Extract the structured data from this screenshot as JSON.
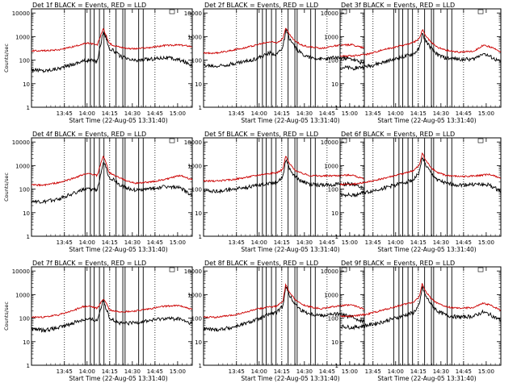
{
  "chart_data": [
    {
      "type": "line",
      "title": "Det 1f BLACK = Events, RED = LLD",
      "xlabel": "Start Time (22-Aug-05 13:31:40)",
      "ylabel": "Counts/sec",
      "xticks": [
        "13:45",
        "14:00",
        "14:15",
        "14:30",
        "14:45",
        "15:00"
      ],
      "yticks": [
        "1",
        "10",
        "100",
        "1000",
        "10000"
      ],
      "xlim_minutes": [
        -8.5,
        98
      ],
      "ylim": [
        1,
        15000
      ],
      "yscale": "log",
      "dotted_lines_minutes": [
        13.3,
        43.3,
        73.3
      ],
      "solid_lines_minutes": [
        27,
        30.5,
        33,
        36.5,
        39.5,
        47.5,
        52,
        53.5,
        62.5,
        65.5
      ],
      "series": [
        {
          "color": "#000000",
          "x": [
            -8.5,
            0,
            10,
            20,
            25,
            30,
            35,
            39,
            41,
            43,
            46,
            50,
            55,
            60,
            70,
            80,
            90,
            98
          ],
          "values": [
            40,
            35,
            45,
            70,
            90,
            100,
            90,
            1600,
            900,
            300,
            250,
            150,
            110,
            95,
            110,
            130,
            100,
            60
          ]
        },
        {
          "color": "#cc0000",
          "x": [
            -8.5,
            0,
            10,
            20,
            25,
            30,
            35,
            39,
            41,
            43,
            46,
            50,
            55,
            60,
            70,
            80,
            90,
            98
          ],
          "values": [
            250,
            250,
            280,
            380,
            480,
            520,
            430,
            2200,
            1100,
            500,
            430,
            360,
            320,
            300,
            340,
            420,
            440,
            380
          ]
        }
      ]
    },
    {
      "type": "line",
      "title": "Det 2f BLACK = Events, RED = LLD",
      "xlabel": "Start Time (22-Aug-05 13:31:40)",
      "ylabel": "",
      "xticks": [
        "13:45",
        "14:00",
        "14:15",
        "14:30",
        "14:45",
        "15:00"
      ],
      "yticks": [
        "1",
        "10",
        "100",
        "1000",
        "10000"
      ],
      "xlim_minutes": [
        -8.5,
        98
      ],
      "ylim": [
        1,
        15000
      ],
      "yscale": "log",
      "dotted_lines_minutes": [
        13.3,
        43.3,
        73.3
      ],
      "solid_lines_minutes": [
        27,
        30.5,
        33,
        36.5,
        39.5,
        47.5,
        52,
        53.5,
        62.5,
        65.5
      ],
      "series": [
        {
          "color": "#000000",
          "x": [
            -8.5,
            0,
            10,
            20,
            25,
            30,
            35,
            40,
            44,
            46,
            48,
            52,
            56,
            62,
            70,
            80,
            90,
            98
          ],
          "values": [
            60,
            55,
            70,
            90,
            110,
            140,
            200,
            180,
            350,
            1900,
            900,
            350,
            200,
            130,
            110,
            130,
            110,
            70
          ]
        },
        {
          "color": "#cc0000",
          "x": [
            -8.5,
            0,
            10,
            20,
            25,
            30,
            35,
            40,
            44,
            46,
            48,
            52,
            56,
            62,
            70,
            80,
            90,
            98
          ],
          "values": [
            200,
            200,
            260,
            350,
            420,
            500,
            600,
            560,
            800,
            2500,
            1300,
            650,
            450,
            360,
            320,
            420,
            450,
            330
          ]
        }
      ]
    },
    {
      "type": "line",
      "title": "Det 3f BLACK = Events, RED = LLD",
      "xlabel": "Start Time (22-Aug-05 13:31:40)",
      "ylabel": "",
      "xticks": [
        "13:45",
        "14:00",
        "14:15",
        "14:30",
        "14:45",
        "15:00"
      ],
      "yticks": [
        "1",
        "10",
        "100",
        "1000",
        "10000"
      ],
      "xlim_minutes": [
        -8.5,
        98
      ],
      "ylim": [
        1,
        15000
      ],
      "yscale": "log",
      "dotted_lines_minutes": [
        13.3,
        43.3,
        73.3
      ],
      "solid_lines_minutes": [
        27,
        30.5,
        33,
        36.5,
        39.5,
        47.5,
        52,
        53.5,
        62.5,
        65.5
      ],
      "series": [
        {
          "color": "#000000",
          "x": [
            -8.5,
            0,
            10,
            20,
            30,
            40,
            44,
            46,
            48,
            52,
            56,
            62,
            70,
            80,
            86,
            90,
            98
          ],
          "values": [
            50,
            45,
            55,
            80,
            120,
            180,
            300,
            1300,
            700,
            300,
            170,
            120,
            110,
            110,
            200,
            150,
            80
          ]
        },
        {
          "color": "#cc0000",
          "x": [
            -8.5,
            0,
            10,
            20,
            30,
            40,
            44,
            46,
            48,
            52,
            56,
            62,
            70,
            80,
            86,
            90,
            98
          ],
          "values": [
            150,
            150,
            180,
            280,
            380,
            550,
            800,
            2000,
            1100,
            550,
            350,
            260,
            220,
            240,
            420,
            380,
            230
          ]
        }
      ]
    },
    {
      "type": "line",
      "title": "Det 4f BLACK = Events, RED = LLD",
      "xlabel": "Start Time (22-Aug-05 13:31:40)",
      "ylabel": "Counts/sec",
      "xticks": [
        "13:45",
        "14:00",
        "14:15",
        "14:30",
        "14:45",
        "15:00"
      ],
      "yticks": [
        "1",
        "10",
        "100",
        "1000",
        "10000"
      ],
      "xlim_minutes": [
        -8.5,
        98
      ],
      "ylim": [
        1,
        15000
      ],
      "yscale": "log",
      "dotted_lines_minutes": [
        13.3,
        43.3,
        73.3
      ],
      "solid_lines_minutes": [
        27,
        30.5,
        33,
        36.5,
        39.5,
        47.5,
        52,
        53.5,
        62.5,
        65.5
      ],
      "series": [
        {
          "color": "#000000",
          "x": [
            -8.5,
            0,
            10,
            20,
            25,
            30,
            35,
            39,
            41,
            43,
            46,
            50,
            55,
            60,
            70,
            80,
            90,
            98
          ],
          "values": [
            30,
            28,
            40,
            70,
            90,
            100,
            90,
            1500,
            800,
            300,
            250,
            150,
            110,
            90,
            100,
            130,
            110,
            55
          ]
        },
        {
          "color": "#cc0000",
          "x": [
            -8.5,
            0,
            10,
            20,
            25,
            30,
            35,
            39,
            41,
            43,
            46,
            50,
            55,
            60,
            70,
            80,
            90,
            98
          ],
          "values": [
            150,
            150,
            190,
            300,
            400,
            450,
            380,
            2600,
            1200,
            500,
            400,
            300,
            220,
            180,
            200,
            260,
            380,
            250
          ]
        }
      ]
    },
    {
      "type": "line",
      "title": "Det 5f BLACK = Events, RED = LLD",
      "xlabel": "Start Time (22-Aug-05 13:31:40)",
      "ylabel": "",
      "xticks": [
        "13:45",
        "14:00",
        "14:15",
        "14:30",
        "14:45",
        "15:00"
      ],
      "yticks": [
        "1",
        "10",
        "100",
        "1000",
        "10000"
      ],
      "xlim_minutes": [
        -8.5,
        98
      ],
      "ylim": [
        1,
        15000
      ],
      "yscale": "log",
      "dotted_lines_minutes": [
        13.3,
        43.3,
        73.3
      ],
      "solid_lines_minutes": [
        27,
        30.5,
        33,
        36.5,
        39.5,
        47.5,
        52,
        53.5,
        62.5,
        65.5
      ],
      "series": [
        {
          "color": "#000000",
          "x": [
            -8.5,
            0,
            10,
            20,
            30,
            40,
            44,
            46,
            48,
            52,
            56,
            62,
            70,
            80,
            90,
            98
          ],
          "values": [
            90,
            80,
            95,
            120,
            160,
            200,
            350,
            1900,
            800,
            350,
            220,
            160,
            150,
            160,
            170,
            100
          ]
        },
        {
          "color": "#cc0000",
          "x": [
            -8.5,
            0,
            10,
            20,
            30,
            40,
            44,
            46,
            48,
            52,
            56,
            62,
            70,
            80,
            90,
            98
          ],
          "values": [
            220,
            220,
            250,
            320,
            420,
            500,
            700,
            2600,
            1300,
            650,
            480,
            380,
            360,
            380,
            400,
            260
          ]
        }
      ]
    },
    {
      "type": "line",
      "title": "Det 6f BLACK = Events, RED = LLD",
      "xlabel": "Start Time (22-Aug-05 13:31:40)",
      "ylabel": "",
      "xticks": [
        "13:45",
        "14:00",
        "14:15",
        "14:30",
        "14:45",
        "15:00"
      ],
      "yticks": [
        "1",
        "10",
        "100",
        "1000",
        "10000"
      ],
      "xlim_minutes": [
        -8.5,
        98
      ],
      "ylim": [
        1,
        15000
      ],
      "yscale": "log",
      "dotted_lines_minutes": [
        13.3,
        43.3,
        73.3
      ],
      "solid_lines_minutes": [
        27,
        30.5,
        33,
        36.5,
        39.5,
        47.5,
        52,
        53.5,
        62.5,
        65.5
      ],
      "series": [
        {
          "color": "#000000",
          "x": [
            -8.5,
            0,
            10,
            20,
            30,
            40,
            44,
            46,
            48,
            52,
            56,
            62,
            70,
            80,
            90,
            98
          ],
          "values": [
            60,
            55,
            75,
            110,
            160,
            250,
            500,
            2500,
            1100,
            450,
            250,
            170,
            150,
            160,
            150,
            80
          ]
        },
        {
          "color": "#cc0000",
          "x": [
            -8.5,
            0,
            10,
            20,
            30,
            40,
            44,
            46,
            48,
            52,
            56,
            62,
            70,
            80,
            90,
            98
          ],
          "values": [
            160,
            160,
            200,
            280,
            400,
            600,
            1000,
            3500,
            1700,
            800,
            500,
            380,
            340,
            360,
            420,
            300
          ]
        }
      ]
    },
    {
      "type": "line",
      "title": "Det 7f BLACK = Events, RED = LLD",
      "xlabel": "Start Time (22-Aug-05 13:31:40)",
      "ylabel": "Counts/sec",
      "xticks": [
        "13:45",
        "14:00",
        "14:15",
        "14:30",
        "14:45",
        "15:00"
      ],
      "yticks": [
        "1",
        "10",
        "100",
        "1000",
        "10000"
      ],
      "xlim_minutes": [
        -8.5,
        98
      ],
      "ylim": [
        1,
        15000
      ],
      "yscale": "log",
      "dotted_lines_minutes": [
        13.3,
        43.3,
        73.3
      ],
      "solid_lines_minutes": [
        27,
        30.5,
        33,
        36.5,
        39.5,
        47.5,
        52,
        53.5,
        62.5,
        65.5
      ],
      "series": [
        {
          "color": "#000000",
          "x": [
            -8.5,
            0,
            10,
            20,
            25,
            30,
            35,
            39,
            41,
            43,
            46,
            50,
            55,
            60,
            70,
            80,
            90,
            98
          ],
          "values": [
            35,
            30,
            40,
            65,
            85,
            90,
            80,
            600,
            250,
            110,
            80,
            60,
            60,
            65,
            80,
            100,
            90,
            55
          ]
        },
        {
          "color": "#cc0000",
          "x": [
            -8.5,
            0,
            10,
            20,
            25,
            30,
            35,
            39,
            41,
            43,
            46,
            50,
            55,
            60,
            70,
            80,
            90,
            98
          ],
          "values": [
            110,
            110,
            140,
            220,
            300,
            320,
            260,
            650,
            450,
            230,
            200,
            190,
            190,
            200,
            250,
            320,
            340,
            230
          ]
        }
      ]
    },
    {
      "type": "line",
      "title": "Det 8f BLACK = Events, RED = LLD",
      "xlabel": "Start Time (22-Aug-05 13:31:40)",
      "ylabel": "",
      "xticks": [
        "13:45",
        "14:00",
        "14:15",
        "14:30",
        "14:45",
        "15:00"
      ],
      "yticks": [
        "1",
        "10",
        "100",
        "1000",
        "10000"
      ],
      "xlim_minutes": [
        -8.5,
        98
      ],
      "ylim": [
        1,
        15000
      ],
      "yscale": "log",
      "dotted_lines_minutes": [
        13.3,
        43.3,
        73.3
      ],
      "solid_lines_minutes": [
        27,
        30.5,
        33,
        36.5,
        39.5,
        47.5,
        52,
        53.5,
        62.5,
        65.5
      ],
      "series": [
        {
          "color": "#000000",
          "x": [
            -8.5,
            0,
            10,
            20,
            25,
            30,
            35,
            40,
            44,
            46,
            48,
            52,
            56,
            62,
            70,
            80,
            90,
            98
          ],
          "values": [
            35,
            32,
            40,
            60,
            80,
            100,
            150,
            170,
            320,
            2500,
            1000,
            400,
            220,
            150,
            130,
            150,
            110,
            70
          ]
        },
        {
          "color": "#cc0000",
          "x": [
            -8.5,
            0,
            10,
            20,
            25,
            30,
            35,
            40,
            44,
            46,
            48,
            52,
            56,
            62,
            70,
            80,
            90,
            98
          ],
          "values": [
            110,
            110,
            130,
            180,
            230,
            260,
            300,
            320,
            500,
            2800,
            1300,
            650,
            400,
            300,
            250,
            330,
            360,
            240
          ]
        }
      ]
    },
    {
      "type": "line",
      "title": "Det 9f BLACK = Events, RED = LLD",
      "xlabel": "Start Time (22-Aug-05 13:31:40)",
      "ylabel": "",
      "xticks": [
        "13:45",
        "14:00",
        "14:15",
        "14:30",
        "14:45",
        "15:00"
      ],
      "yticks": [
        "1",
        "10",
        "100",
        "1000",
        "10000"
      ],
      "xlim_minutes": [
        -8.5,
        98
      ],
      "ylim": [
        1,
        15000
      ],
      "yscale": "log",
      "dotted_lines_minutes": [
        13.3,
        43.3,
        73.3
      ],
      "solid_lines_minutes": [
        27,
        30.5,
        33,
        36.5,
        39.5,
        47.5,
        52,
        53.5,
        62.5,
        65.5
      ],
      "series": [
        {
          "color": "#000000",
          "x": [
            -8.5,
            0,
            10,
            20,
            30,
            40,
            44,
            46,
            48,
            52,
            56,
            62,
            70,
            80,
            86,
            90,
            98
          ],
          "values": [
            45,
            40,
            50,
            70,
            110,
            170,
            350,
            2200,
            900,
            380,
            200,
            130,
            110,
            120,
            180,
            150,
            80
          ]
        },
        {
          "color": "#cc0000",
          "x": [
            -8.5,
            0,
            10,
            20,
            30,
            40,
            44,
            46,
            48,
            52,
            56,
            62,
            70,
            80,
            86,
            90,
            98
          ],
          "values": [
            120,
            120,
            150,
            220,
            330,
            480,
            800,
            3000,
            1400,
            650,
            420,
            300,
            260,
            280,
            420,
            380,
            220
          ]
        }
      ]
    }
  ]
}
